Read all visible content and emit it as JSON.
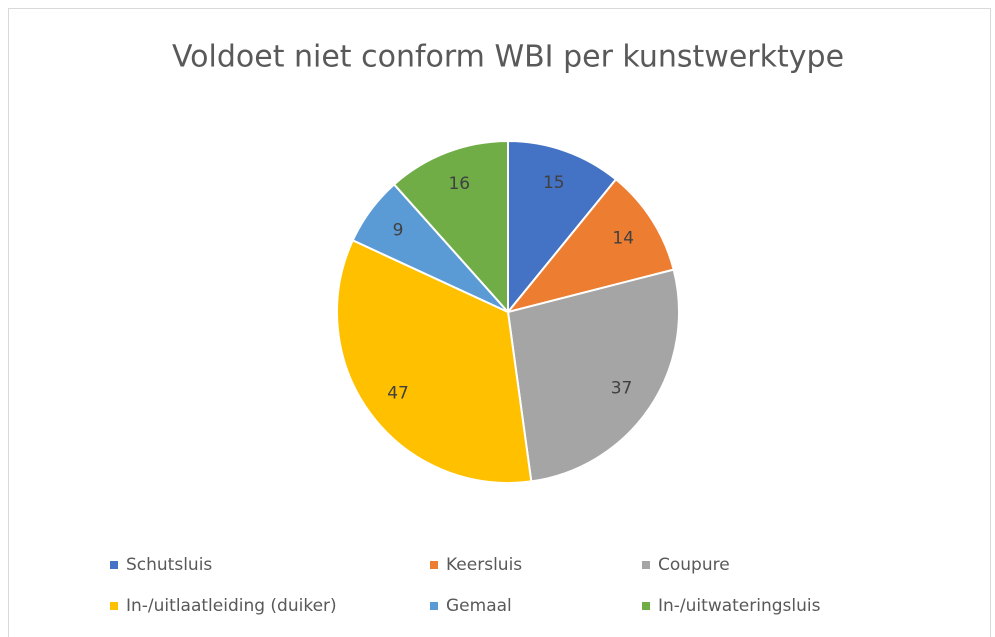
{
  "chart_data": {
    "type": "pie",
    "title": "Voldoet niet conform WBI per kunstwerktype",
    "categories": [
      "Schutsluis",
      "Keersluis",
      "Coupure",
      "In-/uitlaatleiding (duiker)",
      "Gemaal",
      "In-/uitwateringsluis"
    ],
    "values": [
      15,
      14,
      37,
      47,
      9,
      16
    ],
    "colors": [
      "#4472c4",
      "#ed7d31",
      "#a5a5a5",
      "#ffc000",
      "#5b9bd5",
      "#70ad47"
    ],
    "legend": "bottom"
  }
}
